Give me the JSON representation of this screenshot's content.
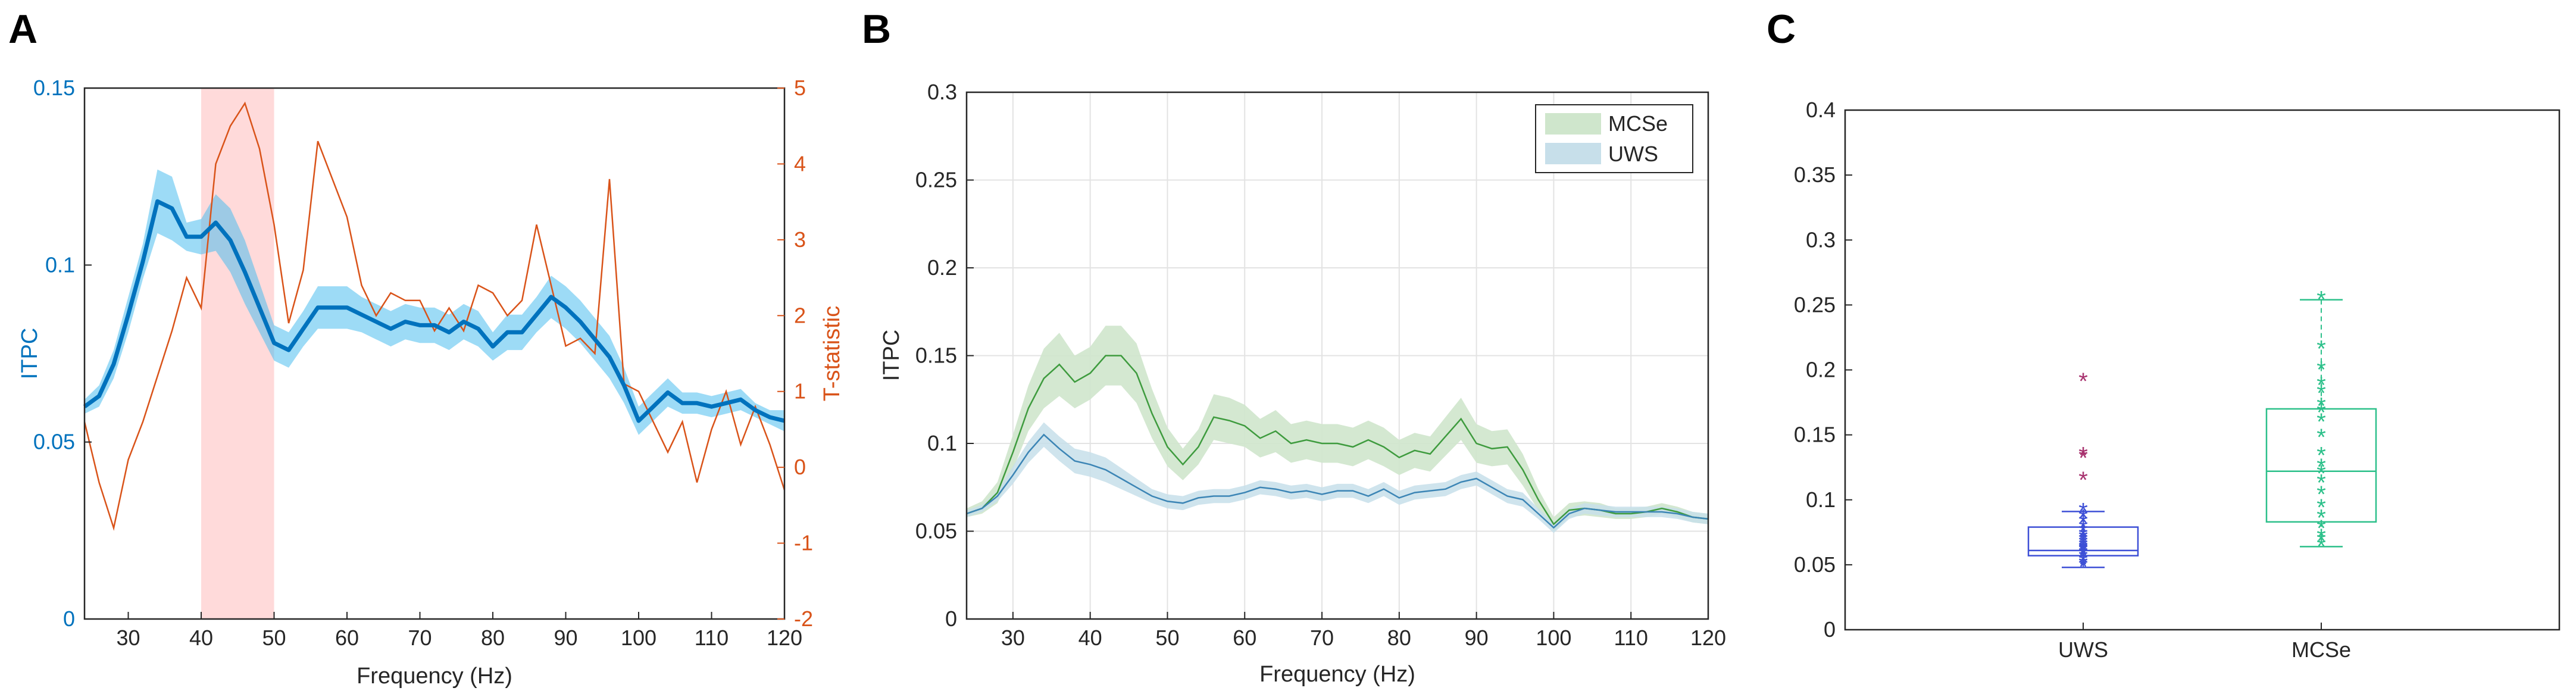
{
  "figure": {
    "panel_labels": [
      "A",
      "B",
      "C"
    ],
    "colors": {
      "itpc_blue": "#0072BD",
      "itpc_blue_band": "#4DBEEE",
      "orange": "#D95319",
      "sig_shade": "#FFD6D6",
      "mcse_green": "#3E9B3E",
      "mcse_band": "#CFE6CC",
      "uws_blue": "#3C85B5",
      "uws_band": "#C7DFEA",
      "box_uws": "#3D4FD6",
      "box_mcse": "#2CC08A",
      "outlier": "#A8336F",
      "grid": "#E3E3E3",
      "axis": "#262626"
    }
  },
  "chart_data": [
    {
      "panel": "A",
      "type": "line",
      "title": "",
      "xlabel": "Frequency (Hz)",
      "ylabel_left": "ITPC",
      "ylabel_right": "T-statistic",
      "xlim": [
        24,
        120
      ],
      "ylim_left": [
        0,
        0.15
      ],
      "ylim_right": [
        -2,
        5
      ],
      "xticks": [
        30,
        40,
        50,
        60,
        70,
        80,
        90,
        100,
        110,
        120
      ],
      "xtick_labels": [
        "30",
        "40",
        "50",
        "60",
        "70",
        "80",
        "90",
        "100",
        "110",
        "120"
      ],
      "yticks_left": [
        0,
        0.05,
        0.1,
        0.15
      ],
      "ytick_labels_left": [
        "0",
        "0.05",
        "0.1",
        "0.15"
      ],
      "yticks_right": [
        -2,
        -1,
        0,
        1,
        2,
        3,
        4,
        5
      ],
      "ytick_labels_right": [
        "-2",
        "-1",
        "0",
        "1",
        "2",
        "3",
        "4",
        "5"
      ],
      "shaded_region": [
        40,
        50
      ],
      "grid": false,
      "series": [
        {
          "name": "ITPC",
          "axis": "left",
          "x": [
            24,
            26,
            28,
            30,
            32,
            34,
            36,
            38,
            40,
            42,
            44,
            46,
            48,
            50,
            52,
            54,
            56,
            58,
            60,
            62,
            64,
            66,
            68,
            70,
            72,
            74,
            76,
            78,
            80,
            82,
            84,
            86,
            88,
            90,
            92,
            94,
            96,
            98,
            100,
            102,
            104,
            106,
            108,
            110,
            112,
            114,
            116,
            118,
            120
          ],
          "values": [
            0.06,
            0.063,
            0.072,
            0.086,
            0.101,
            0.118,
            0.116,
            0.108,
            0.108,
            0.112,
            0.107,
            0.098,
            0.088,
            0.078,
            0.076,
            0.082,
            0.088,
            0.088,
            0.088,
            0.086,
            0.084,
            0.082,
            0.084,
            0.083,
            0.083,
            0.081,
            0.084,
            0.082,
            0.077,
            0.081,
            0.081,
            0.086,
            0.091,
            0.088,
            0.084,
            0.079,
            0.074,
            0.066,
            0.056,
            0.06,
            0.064,
            0.061,
            0.061,
            0.06,
            0.061,
            0.062,
            0.059,
            0.057,
            0.056
          ],
          "ci_lower": [
            0.058,
            0.06,
            0.068,
            0.081,
            0.096,
            0.109,
            0.107,
            0.104,
            0.103,
            0.104,
            0.098,
            0.089,
            0.081,
            0.073,
            0.071,
            0.077,
            0.082,
            0.082,
            0.082,
            0.081,
            0.079,
            0.077,
            0.079,
            0.078,
            0.078,
            0.076,
            0.079,
            0.077,
            0.073,
            0.076,
            0.076,
            0.081,
            0.085,
            0.082,
            0.078,
            0.073,
            0.068,
            0.061,
            0.052,
            0.056,
            0.06,
            0.058,
            0.058,
            0.057,
            0.058,
            0.059,
            0.057,
            0.055,
            0.053
          ],
          "ci_upper": [
            0.062,
            0.066,
            0.076,
            0.091,
            0.106,
            0.127,
            0.125,
            0.112,
            0.113,
            0.12,
            0.116,
            0.107,
            0.095,
            0.083,
            0.081,
            0.087,
            0.094,
            0.094,
            0.094,
            0.091,
            0.089,
            0.087,
            0.089,
            0.088,
            0.088,
            0.086,
            0.089,
            0.087,
            0.081,
            0.086,
            0.086,
            0.091,
            0.097,
            0.094,
            0.09,
            0.085,
            0.08,
            0.071,
            0.06,
            0.064,
            0.068,
            0.064,
            0.064,
            0.063,
            0.064,
            0.065,
            0.061,
            0.059,
            0.059
          ]
        },
        {
          "name": "T-statistic",
          "axis": "right",
          "x": [
            24,
            26,
            28,
            30,
            32,
            34,
            36,
            38,
            40,
            42,
            44,
            46,
            48,
            50,
            52,
            54,
            56,
            58,
            60,
            62,
            64,
            66,
            68,
            70,
            72,
            74,
            76,
            78,
            80,
            82,
            84,
            86,
            88,
            90,
            92,
            94,
            96,
            98,
            100,
            102,
            104,
            106,
            108,
            110,
            112,
            114,
            116,
            118,
            120
          ],
          "values": [
            0.6,
            -0.2,
            -0.8,
            0.1,
            0.6,
            1.2,
            1.8,
            2.5,
            2.1,
            4.0,
            4.5,
            4.8,
            4.2,
            3.2,
            1.9,
            2.6,
            4.3,
            3.8,
            3.3,
            2.4,
            2.0,
            2.3,
            2.2,
            2.2,
            1.8,
            2.1,
            1.8,
            2.4,
            2.3,
            2.0,
            2.2,
            3.2,
            2.4,
            1.6,
            1.7,
            1.5,
            3.8,
            1.1,
            1.0,
            0.6,
            0.2,
            0.6,
            -0.2,
            0.5,
            1.0,
            0.3,
            0.8,
            0.3,
            -0.3
          ]
        }
      ]
    },
    {
      "panel": "B",
      "type": "line",
      "title": "",
      "xlabel": "Frequency (Hz)",
      "ylabel": "ITPC",
      "xlim": [
        24,
        120
      ],
      "ylim": [
        0,
        0.3
      ],
      "xticks": [
        30,
        40,
        50,
        60,
        70,
        80,
        90,
        100,
        110,
        120
      ],
      "xtick_labels": [
        "30",
        "40",
        "50",
        "60",
        "70",
        "80",
        "90",
        "100",
        "110",
        "120"
      ],
      "yticks": [
        0,
        0.05,
        0.1,
        0.15,
        0.2,
        0.25,
        0.3
      ],
      "ytick_labels": [
        "0",
        "0.05",
        "0.1",
        "0.15",
        "0.2",
        "0.25",
        "0.3"
      ],
      "grid": true,
      "legend_position": "top-right",
      "series": [
        {
          "name": "MCSe",
          "x": [
            24,
            26,
            28,
            30,
            32,
            34,
            36,
            38,
            40,
            42,
            44,
            46,
            48,
            50,
            52,
            54,
            56,
            58,
            60,
            62,
            64,
            66,
            68,
            70,
            72,
            74,
            76,
            78,
            80,
            82,
            84,
            86,
            88,
            90,
            92,
            94,
            96,
            98,
            100,
            102,
            104,
            106,
            108,
            110,
            112,
            114,
            116,
            118,
            120
          ],
          "values": [
            0.06,
            0.063,
            0.072,
            0.095,
            0.12,
            0.137,
            0.145,
            0.135,
            0.14,
            0.15,
            0.15,
            0.14,
            0.117,
            0.098,
            0.088,
            0.098,
            0.115,
            0.113,
            0.11,
            0.103,
            0.107,
            0.1,
            0.102,
            0.1,
            0.1,
            0.098,
            0.102,
            0.098,
            0.092,
            0.096,
            0.094,
            0.104,
            0.114,
            0.1,
            0.097,
            0.098,
            0.085,
            0.068,
            0.054,
            0.062,
            0.063,
            0.062,
            0.06,
            0.06,
            0.061,
            0.063,
            0.061,
            0.058,
            0.057
          ],
          "ci_lower": [
            0.058,
            0.06,
            0.066,
            0.085,
            0.107,
            0.12,
            0.127,
            0.12,
            0.125,
            0.133,
            0.133,
            0.123,
            0.103,
            0.087,
            0.079,
            0.088,
            0.102,
            0.1,
            0.098,
            0.092,
            0.095,
            0.089,
            0.091,
            0.089,
            0.089,
            0.087,
            0.091,
            0.087,
            0.082,
            0.086,
            0.084,
            0.093,
            0.102,
            0.089,
            0.087,
            0.088,
            0.076,
            0.062,
            0.05,
            0.058,
            0.059,
            0.058,
            0.057,
            0.057,
            0.058,
            0.06,
            0.058,
            0.055,
            0.054
          ],
          "ci_upper": [
            0.063,
            0.067,
            0.078,
            0.105,
            0.133,
            0.154,
            0.163,
            0.15,
            0.155,
            0.167,
            0.167,
            0.157,
            0.131,
            0.109,
            0.097,
            0.108,
            0.128,
            0.126,
            0.122,
            0.114,
            0.119,
            0.111,
            0.113,
            0.111,
            0.111,
            0.109,
            0.113,
            0.109,
            0.102,
            0.106,
            0.104,
            0.115,
            0.126,
            0.111,
            0.107,
            0.108,
            0.094,
            0.074,
            0.058,
            0.066,
            0.067,
            0.066,
            0.063,
            0.063,
            0.064,
            0.066,
            0.064,
            0.061,
            0.06
          ]
        },
        {
          "name": "UWS",
          "x": [
            24,
            26,
            28,
            30,
            32,
            34,
            36,
            38,
            40,
            42,
            44,
            46,
            48,
            50,
            52,
            54,
            56,
            58,
            60,
            62,
            64,
            66,
            68,
            70,
            72,
            74,
            76,
            78,
            80,
            82,
            84,
            86,
            88,
            90,
            92,
            94,
            96,
            98,
            100,
            102,
            104,
            106,
            108,
            110,
            112,
            114,
            116,
            118,
            120
          ],
          "values": [
            0.06,
            0.063,
            0.07,
            0.082,
            0.095,
            0.105,
            0.097,
            0.09,
            0.088,
            0.085,
            0.08,
            0.075,
            0.07,
            0.067,
            0.066,
            0.069,
            0.07,
            0.07,
            0.072,
            0.075,
            0.074,
            0.072,
            0.073,
            0.071,
            0.073,
            0.073,
            0.07,
            0.074,
            0.069,
            0.072,
            0.073,
            0.074,
            0.078,
            0.08,
            0.075,
            0.07,
            0.068,
            0.06,
            0.052,
            0.06,
            0.063,
            0.062,
            0.061,
            0.061,
            0.061,
            0.061,
            0.06,
            0.058,
            0.057
          ],
          "ci_lower": [
            0.058,
            0.061,
            0.067,
            0.077,
            0.089,
            0.098,
            0.09,
            0.083,
            0.081,
            0.078,
            0.074,
            0.07,
            0.066,
            0.063,
            0.062,
            0.065,
            0.066,
            0.066,
            0.068,
            0.071,
            0.07,
            0.068,
            0.069,
            0.067,
            0.069,
            0.069,
            0.066,
            0.07,
            0.065,
            0.068,
            0.069,
            0.07,
            0.074,
            0.076,
            0.071,
            0.066,
            0.064,
            0.057,
            0.049,
            0.057,
            0.06,
            0.059,
            0.058,
            0.058,
            0.058,
            0.058,
            0.057,
            0.055,
            0.054
          ],
          "ci_upper": [
            0.062,
            0.065,
            0.073,
            0.087,
            0.101,
            0.112,
            0.104,
            0.097,
            0.095,
            0.092,
            0.086,
            0.08,
            0.074,
            0.071,
            0.07,
            0.073,
            0.074,
            0.074,
            0.076,
            0.079,
            0.078,
            0.076,
            0.077,
            0.075,
            0.077,
            0.077,
            0.074,
            0.078,
            0.073,
            0.076,
            0.077,
            0.078,
            0.082,
            0.084,
            0.079,
            0.074,
            0.072,
            0.063,
            0.055,
            0.063,
            0.066,
            0.065,
            0.064,
            0.064,
            0.064,
            0.064,
            0.063,
            0.061,
            0.06
          ]
        }
      ]
    },
    {
      "panel": "C",
      "type": "box",
      "title": "",
      "xlabel": "",
      "ylabel": "",
      "ylim": [
        0,
        0.4
      ],
      "yticks": [
        0,
        0.05,
        0.1,
        0.15,
        0.2,
        0.25,
        0.3,
        0.35,
        0.4
      ],
      "ytick_labels": [
        "0",
        "0.05",
        "0.1",
        "0.15",
        "0.2",
        "0.25",
        "0.3",
        "0.35",
        "0.4"
      ],
      "grid": false,
      "categories": [
        "UWS",
        "MCSe"
      ],
      "boxes": [
        {
          "name": "UWS",
          "q1": 0.057,
          "median": 0.061,
          "q3": 0.079,
          "whisker_low": 0.048,
          "whisker_high": 0.091,
          "outliers": [
            0.115,
            0.132,
            0.134,
            0.191
          ],
          "points": [
            0.048,
            0.05,
            0.052,
            0.055,
            0.057,
            0.058,
            0.06,
            0.061,
            0.062,
            0.064,
            0.066,
            0.068,
            0.07,
            0.072,
            0.075,
            0.078,
            0.082,
            0.086,
            0.091
          ]
        },
        {
          "name": "MCSe",
          "q1": 0.083,
          "median": 0.122,
          "q3": 0.17,
          "whisker_low": 0.064,
          "whisker_high": 0.254,
          "outliers": [],
          "points": [
            0.064,
            0.068,
            0.071,
            0.078,
            0.086,
            0.094,
            0.104,
            0.113,
            0.12,
            0.125,
            0.134,
            0.148,
            0.16,
            0.167,
            0.172,
            0.182,
            0.188,
            0.2,
            0.216,
            0.254
          ]
        }
      ]
    }
  ]
}
